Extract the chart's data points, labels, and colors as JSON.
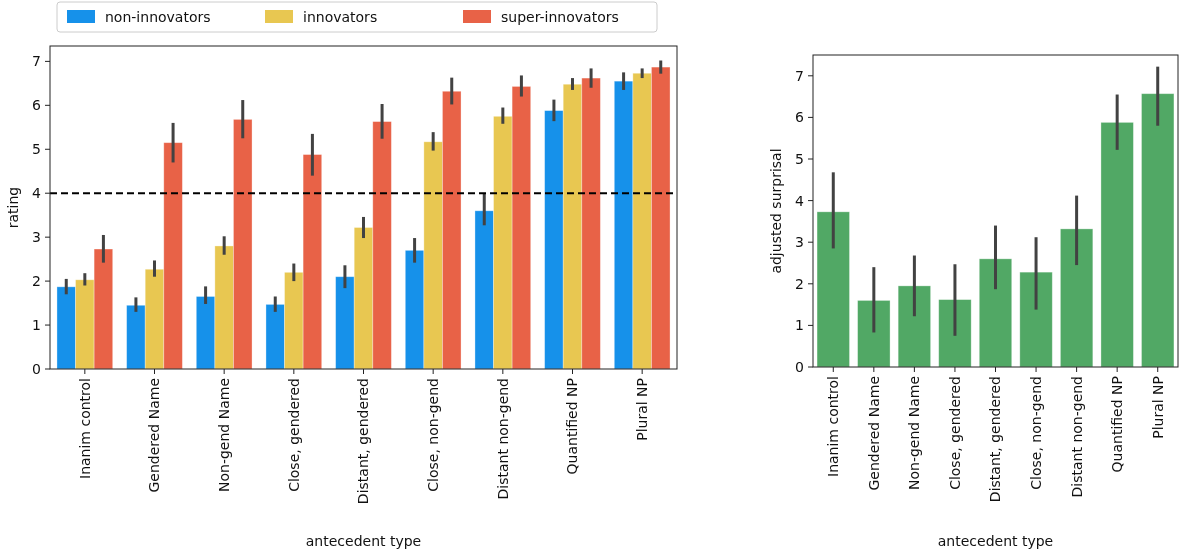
{
  "chart_data": [
    {
      "type": "bar",
      "xlabel": "antecedent type",
      "ylabel": "rating",
      "categories": [
        "Inanim control",
        "Gendered Name",
        "Non-gend Name",
        "Close, gendered",
        "Distant, gendered",
        "Close, non-gend",
        "Distant non-gend",
        "Quantified NP",
        "Plural NP"
      ],
      "series": [
        {
          "name": "non-innovators",
          "color": "#1691ea",
          "values": [
            1.87,
            1.45,
            1.65,
            1.47,
            2.1,
            2.7,
            3.6,
            5.88,
            6.55
          ],
          "errors": [
            [
              1.7,
              2.05
            ],
            [
              1.3,
              1.63
            ],
            [
              1.48,
              1.88
            ],
            [
              1.3,
              1.65
            ],
            [
              1.84,
              2.36
            ],
            [
              2.42,
              2.98
            ],
            [
              3.27,
              4.0
            ],
            [
              5.64,
              6.13
            ],
            [
              6.35,
              6.75
            ]
          ]
        },
        {
          "name": "innovators",
          "color": "#e8c751",
          "values": [
            2.03,
            2.27,
            2.8,
            2.2,
            3.22,
            5.17,
            5.75,
            6.48,
            6.73
          ],
          "errors": [
            [
              1.9,
              2.18
            ],
            [
              2.1,
              2.47
            ],
            [
              2.6,
              3.02
            ],
            [
              2.0,
              2.4
            ],
            [
              2.98,
              3.46
            ],
            [
              4.97,
              5.39
            ],
            [
              5.58,
              5.95
            ],
            [
              6.35,
              6.62
            ],
            [
              6.62,
              6.84
            ]
          ]
        },
        {
          "name": "super-innovators",
          "color": "#e86247",
          "values": [
            2.73,
            5.15,
            5.68,
            4.88,
            5.63,
            6.32,
            6.43,
            6.62,
            6.87
          ],
          "errors": [
            [
              2.42,
              3.05
            ],
            [
              4.7,
              5.6
            ],
            [
              5.25,
              6.12
            ],
            [
              4.4,
              5.35
            ],
            [
              5.24,
              6.03
            ],
            [
              6.02,
              6.63
            ],
            [
              6.2,
              6.68
            ],
            [
              6.4,
              6.84
            ],
            [
              6.72,
              7.02
            ]
          ]
        }
      ],
      "ylim": [
        0,
        7.35
      ],
      "yticks": [
        0,
        1,
        2,
        3,
        4,
        5,
        6,
        7
      ],
      "ref_lines": [
        {
          "axis": "y",
          "value": 4,
          "color": "#000000",
          "line_style": "dashed"
        }
      ],
      "legend": "top",
      "grid": false
    },
    {
      "type": "bar",
      "xlabel": "antecedent type",
      "ylabel": "adjusted surprisal",
      "categories": [
        "Inanim control",
        "Gendered Name",
        "Non-gend Name",
        "Close, gendered",
        "Distant, gendered",
        "Close, non-gend",
        "Distant non-gend",
        "Quantified NP",
        "Plural NP"
      ],
      "series": [
        {
          "color": "#51a865",
          "values": [
            3.73,
            1.6,
            1.95,
            1.62,
            2.6,
            2.28,
            3.32,
            5.88,
            6.57
          ],
          "errors": [
            [
              2.85,
              4.68
            ],
            [
              0.83,
              2.4
            ],
            [
              1.22,
              2.68
            ],
            [
              0.75,
              2.47
            ],
            [
              1.87,
              3.4
            ],
            [
              1.38,
              3.12
            ],
            [
              2.45,
              4.12
            ],
            [
              5.22,
              6.55
            ],
            [
              5.8,
              7.22
            ]
          ]
        }
      ],
      "ylim": [
        0,
        7.5
      ],
      "yticks": [
        0,
        1,
        2,
        3,
        4,
        5,
        6,
        7
      ],
      "legend": false,
      "grid": false
    }
  ]
}
